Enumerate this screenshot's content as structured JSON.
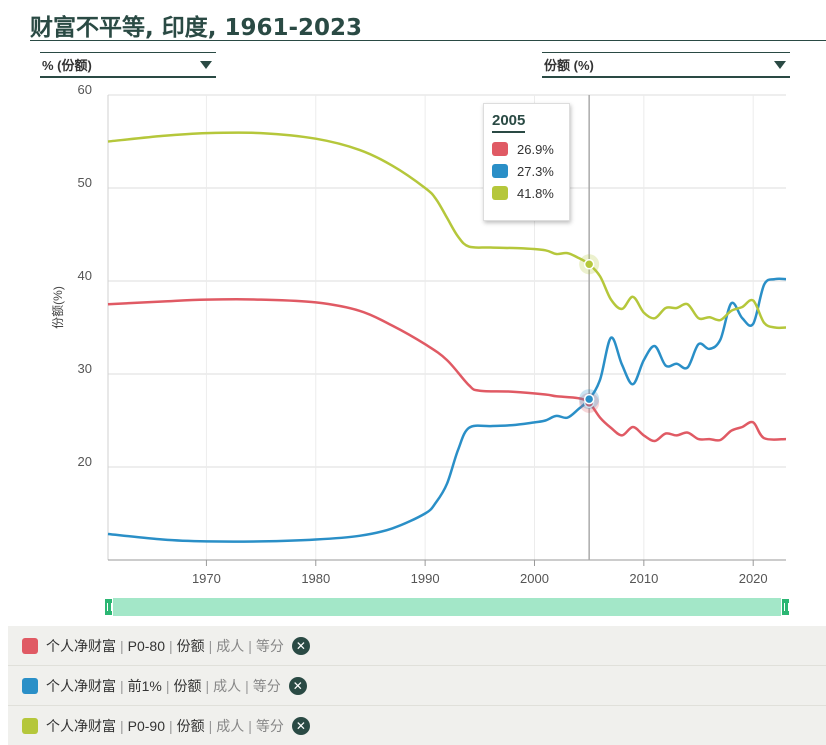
{
  "header": {
    "title": "财富不平等, 印度, 1961-2023"
  },
  "controls": {
    "left_dropdown": "% (份额)",
    "right_dropdown": "份额 (%)"
  },
  "tooltip": {
    "year": "2005",
    "values": [
      "26.9%",
      "27.3%",
      "41.8%"
    ]
  },
  "legend": [
    {
      "parts": [
        "个人净财富",
        "P0-80",
        "份额",
        "成人",
        "等分"
      ],
      "color": "#e05a64"
    },
    {
      "parts": [
        "个人净财富",
        "前1%",
        "份额",
        "成人",
        "等分"
      ],
      "color": "#2a8fc7"
    },
    {
      "parts": [
        "个人净财富",
        "P0-90",
        "份额",
        "成人",
        "等分"
      ],
      "color": "#b5c73b"
    }
  ],
  "chart_data": {
    "type": "line",
    "xlim": [
      1961,
      2023
    ],
    "ylim": [
      10,
      60
    ],
    "yticks": [
      20,
      30,
      40,
      50,
      60
    ],
    "xticks": [
      1970,
      1980,
      1990,
      2000,
      2010,
      2020
    ],
    "ylabel": "份额(%)",
    "grid": true,
    "highlight_x": 2005,
    "series": [
      {
        "name": "个人净财富 | P0-80 | 份额 | 成人 | 等分",
        "color": "#e05a64",
        "points": [
          [
            1961,
            37.5
          ],
          [
            1966,
            37.8
          ],
          [
            1970,
            38
          ],
          [
            1975,
            38
          ],
          [
            1980,
            37.7
          ],
          [
            1984,
            36.8
          ],
          [
            1987,
            35.2
          ],
          [
            1990,
            33.2
          ],
          [
            1992,
            31.5
          ],
          [
            1994,
            28.8
          ],
          [
            1995,
            28.2
          ],
          [
            1998,
            28.1
          ],
          [
            2001,
            27.8
          ],
          [
            2002,
            27.6
          ],
          [
            2004,
            27.4
          ],
          [
            2005,
            26.9
          ],
          [
            2006,
            25.3
          ],
          [
            2007,
            24.2
          ],
          [
            2008,
            23.4
          ],
          [
            2009,
            24.3
          ],
          [
            2010,
            23.4
          ],
          [
            2011,
            22.8
          ],
          [
            2012,
            23.6
          ],
          [
            2013,
            23.4
          ],
          [
            2014,
            23.7
          ],
          [
            2015,
            23.0
          ],
          [
            2016,
            23.0
          ],
          [
            2017,
            22.9
          ],
          [
            2018,
            23.9
          ],
          [
            2019,
            24.3
          ],
          [
            2020,
            24.8
          ],
          [
            2021,
            23.1
          ],
          [
            2023,
            23.0
          ]
        ]
      },
      {
        "name": "个人净财富 | 前1% | 份额 | 成人 | 等分",
        "color": "#2a8fc7",
        "points": [
          [
            1961,
            12.8
          ],
          [
            1966,
            12.2
          ],
          [
            1970,
            12.0
          ],
          [
            1975,
            12.0
          ],
          [
            1980,
            12.2
          ],
          [
            1984,
            12.6
          ],
          [
            1987,
            13.4
          ],
          [
            1990,
            15.0
          ],
          [
            1991,
            16.2
          ],
          [
            1992,
            18.2
          ],
          [
            1993,
            21.8
          ],
          [
            1994,
            24.2
          ],
          [
            1996,
            24.4
          ],
          [
            1998,
            24.5
          ],
          [
            2000,
            24.8
          ],
          [
            2001,
            25.0
          ],
          [
            2002,
            25.5
          ],
          [
            2003,
            25.3
          ],
          [
            2004,
            26.2
          ],
          [
            2005,
            27.3
          ],
          [
            2006,
            29.4
          ],
          [
            2007,
            33.9
          ],
          [
            2008,
            31.0
          ],
          [
            2009,
            28.9
          ],
          [
            2010,
            31.5
          ],
          [
            2011,
            33.0
          ],
          [
            2012,
            30.9
          ],
          [
            2013,
            31.1
          ],
          [
            2014,
            30.7
          ],
          [
            2015,
            33.2
          ],
          [
            2016,
            32.7
          ],
          [
            2017,
            33.7
          ],
          [
            2018,
            37.6
          ],
          [
            2019,
            36.0
          ],
          [
            2020,
            35.4
          ],
          [
            2021,
            39.6
          ],
          [
            2022,
            40.2
          ],
          [
            2023,
            40.2
          ]
        ]
      },
      {
        "name": "个人净财富 | P0-90 | 份额 | 成人 | 等分",
        "color": "#b5c73b",
        "points": [
          [
            1961,
            55
          ],
          [
            1966,
            55.6
          ],
          [
            1970,
            55.9
          ],
          [
            1975,
            55.9
          ],
          [
            1980,
            55.3
          ],
          [
            1984,
            54.1
          ],
          [
            1987,
            52.4
          ],
          [
            1990,
            50.0
          ],
          [
            1991,
            48.8
          ],
          [
            1992,
            46.8
          ],
          [
            1993,
            44.8
          ],
          [
            1994,
            43.7
          ],
          [
            1996,
            43.6
          ],
          [
            1999,
            43.5
          ],
          [
            2001,
            43.3
          ],
          [
            2002,
            42.9
          ],
          [
            2003,
            43.0
          ],
          [
            2004,
            42.5
          ],
          [
            2005,
            41.8
          ],
          [
            2006,
            40.5
          ],
          [
            2007,
            38.0
          ],
          [
            2008,
            37.0
          ],
          [
            2009,
            38.3
          ],
          [
            2010,
            36.6
          ],
          [
            2011,
            36.0
          ],
          [
            2012,
            37.1
          ],
          [
            2013,
            37.1
          ],
          [
            2014,
            37.5
          ],
          [
            2015,
            36.0
          ],
          [
            2016,
            36.1
          ],
          [
            2017,
            35.8
          ],
          [
            2018,
            36.8
          ],
          [
            2019,
            37.2
          ],
          [
            2020,
            37.9
          ],
          [
            2021,
            35.5
          ],
          [
            2022,
            35.0
          ],
          [
            2023,
            35.0
          ]
        ]
      }
    ]
  }
}
